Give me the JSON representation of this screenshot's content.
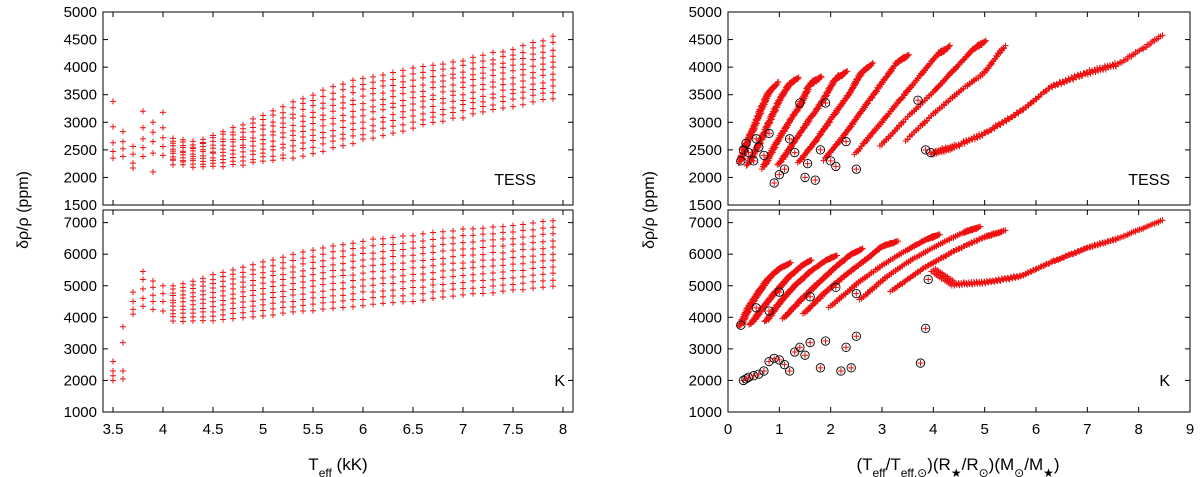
{
  "colors": {
    "marker": "#ee1111",
    "ring": "#000000",
    "axis": "#000000"
  },
  "chart_data": [
    {
      "type": "scatter",
      "panel": "left-top",
      "marker": "plus",
      "ylabel": "δρ/ρ (ppm)",
      "annotation": "TESS",
      "xlim": [
        3.4,
        8.1
      ],
      "ylim": [
        1500,
        5000
      ],
      "xticks": [],
      "yticks": [
        "1500",
        "2000",
        "2500",
        "3000",
        "3500",
        "4000",
        "4500",
        "5000"
      ],
      "series": [
        {
          "points": [
            [
              3.5,
              3380
            ],
            [
              3.5,
              2920
            ],
            [
              3.5,
              2630
            ],
            [
              3.5,
              2470
            ],
            [
              3.5,
              2350
            ],
            [
              3.6,
              2830
            ],
            [
              3.6,
              2650
            ],
            [
              3.6,
              2520
            ],
            [
              3.6,
              2380
            ],
            [
              3.7,
              2560
            ],
            [
              3.7,
              2420
            ],
            [
              3.7,
              2260
            ],
            [
              3.7,
              2170
            ],
            [
              3.8,
              3200
            ],
            [
              3.8,
              2900
            ],
            [
              3.8,
              2700
            ],
            [
              3.8,
              2540
            ],
            [
              3.8,
              2380
            ],
            [
              3.9,
              3000
            ],
            [
              3.9,
              2820
            ],
            [
              3.9,
              2650
            ],
            [
              3.9,
              2440
            ],
            [
              3.9,
              2100
            ],
            [
              4.0,
              3180
            ],
            [
              4.0,
              2900
            ],
            [
              4.0,
              2720
            ],
            [
              4.0,
              2560
            ],
            [
              4.0,
              2400
            ]
          ]
        }
      ],
      "grid": [
        {
          "x": [
            4.1,
            4.3,
            4.5,
            4.8,
            5.2,
            5.6,
            6.0,
            6.5,
            7.0,
            7.5,
            8.0
          ],
          "ymin": [
            2250,
            2200,
            2200,
            2230,
            2330,
            2480,
            2680,
            2900,
            3100,
            3300,
            3480
          ],
          "ymax": [
            2700,
            2640,
            2760,
            2970,
            3280,
            3580,
            3810,
            3970,
            4130,
            4330,
            4600
          ]
        }
      ]
    },
    {
      "type": "scatter",
      "panel": "left-bottom",
      "marker": "plus",
      "xlabel": "Teff (kK)",
      "annotation": "K",
      "xlim": [
        3.4,
        8.1
      ],
      "ylim": [
        1000,
        7400
      ],
      "xticks": [
        "3.5",
        "4",
        "4.5",
        "5",
        "5.5",
        "6",
        "6.5",
        "7",
        "7.5",
        "8"
      ],
      "yticks": [
        "1000",
        "2000",
        "3000",
        "4000",
        "5000",
        "6000",
        "7000"
      ],
      "series": [
        {
          "points": [
            [
              3.5,
              2600
            ],
            [
              3.5,
              2300
            ],
            [
              3.5,
              2150
            ],
            [
              3.5,
              2000
            ],
            [
              3.6,
              3700
            ],
            [
              3.6,
              3200
            ],
            [
              3.6,
              2300
            ],
            [
              3.6,
              2050
            ],
            [
              3.7,
              4800
            ],
            [
              3.7,
              4500
            ],
            [
              3.7,
              4250
            ],
            [
              3.7,
              4100
            ],
            [
              3.8,
              5450
            ],
            [
              3.8,
              5200
            ],
            [
              3.8,
              4900
            ],
            [
              3.8,
              4600
            ],
            [
              3.8,
              4350
            ],
            [
              3.9,
              5150
            ],
            [
              3.9,
              4950
            ],
            [
              3.9,
              4700
            ],
            [
              3.9,
              4500
            ],
            [
              3.9,
              4250
            ],
            [
              4.0,
              5000
            ],
            [
              4.0,
              4750
            ],
            [
              4.0,
              4500
            ],
            [
              4.0,
              4200
            ]
          ]
        }
      ],
      "grid": [
        {
          "x": [
            4.1,
            4.3,
            4.5,
            4.8,
            5.2,
            5.6,
            6.0,
            6.5,
            7.0,
            7.5,
            8.0
          ],
          "ymin": [
            3900,
            3870,
            3900,
            4000,
            4120,
            4250,
            4380,
            4520,
            4700,
            4850,
            5000
          ],
          "ymax": [
            5000,
            5150,
            5350,
            5600,
            5900,
            6200,
            6420,
            6600,
            6780,
            6920,
            7100
          ]
        }
      ]
    },
    {
      "type": "scatter",
      "panel": "right-top",
      "marker": "plus",
      "annotation": "TESS",
      "xlim": [
        0,
        9
      ],
      "ylim": [
        1500,
        5000
      ],
      "xticks": [],
      "yticks": [
        "1500",
        "2000",
        "2500",
        "3000",
        "3500",
        "4000",
        "4500",
        "5000"
      ],
      "tracks": [
        [
          [
            0.25,
            2300
          ],
          [
            0.35,
            2600
          ],
          [
            0.5,
            2900
          ],
          [
            0.65,
            3250
          ],
          [
            0.8,
            3550
          ],
          [
            0.95,
            3700
          ]
        ],
        [
          [
            0.4,
            2250
          ],
          [
            0.6,
            2600
          ],
          [
            0.8,
            3000
          ],
          [
            1.0,
            3400
          ],
          [
            1.2,
            3700
          ],
          [
            1.35,
            3780
          ]
        ],
        [
          [
            0.7,
            2200
          ],
          [
            0.9,
            2550
          ],
          [
            1.15,
            2950
          ],
          [
            1.4,
            3300
          ],
          [
            1.6,
            3700
          ],
          [
            1.8,
            3800
          ]
        ],
        [
          [
            1.0,
            2250
          ],
          [
            1.25,
            2600
          ],
          [
            1.55,
            3000
          ],
          [
            1.85,
            3400
          ],
          [
            2.1,
            3800
          ],
          [
            2.3,
            3900
          ]
        ],
        [
          [
            1.4,
            2300
          ],
          [
            1.7,
            2650
          ],
          [
            2.0,
            3050
          ],
          [
            2.35,
            3500
          ],
          [
            2.6,
            3900
          ],
          [
            2.8,
            4050
          ]
        ],
        [
          [
            1.9,
            2350
          ],
          [
            2.25,
            2750
          ],
          [
            2.6,
            3200
          ],
          [
            2.95,
            3650
          ],
          [
            3.3,
            4100
          ],
          [
            3.5,
            4200
          ]
        ],
        [
          [
            2.5,
            2450
          ],
          [
            2.9,
            2900
          ],
          [
            3.3,
            3350
          ],
          [
            3.7,
            3800
          ],
          [
            4.1,
            4250
          ],
          [
            4.3,
            4350
          ]
        ],
        [
          [
            3.0,
            2600
          ],
          [
            3.5,
            3100
          ],
          [
            4.0,
            3550
          ],
          [
            4.4,
            3950
          ],
          [
            4.8,
            4350
          ],
          [
            5.0,
            4450
          ]
        ],
        [
          [
            3.5,
            2700
          ],
          [
            4.0,
            3150
          ],
          [
            4.5,
            3550
          ],
          [
            5.0,
            3900
          ],
          [
            5.4,
            4400
          ]
        ],
        [
          [
            4.0,
            2450
          ],
          [
            4.4,
            2550
          ],
          [
            5.0,
            2800
          ],
          [
            5.7,
            3200
          ],
          [
            6.3,
            3650
          ],
          [
            7.0,
            3900
          ],
          [
            7.6,
            4050
          ],
          [
            8.5,
            4600
          ]
        ]
      ],
      "circled": [
        [
          0.25,
          2300
        ],
        [
          0.3,
          2500
        ],
        [
          0.35,
          2620
        ],
        [
          0.4,
          2450
        ],
        [
          0.5,
          2300
        ],
        [
          0.55,
          2700
        ],
        [
          0.6,
          2550
        ],
        [
          0.7,
          2400
        ],
        [
          0.8,
          2800
        ],
        [
          0.9,
          1900
        ],
        [
          1.0,
          2050
        ],
        [
          1.1,
          2150
        ],
        [
          1.2,
          2700
        ],
        [
          1.3,
          2450
        ],
        [
          1.4,
          3350
        ],
        [
          1.5,
          2000
        ],
        [
          1.55,
          2250
        ],
        [
          1.7,
          1950
        ],
        [
          1.8,
          2500
        ],
        [
          2.0,
          2300
        ],
        [
          2.1,
          2200
        ],
        [
          2.3,
          2650
        ],
        [
          2.5,
          2150
        ],
        [
          1.9,
          3350
        ],
        [
          3.7,
          3400
        ],
        [
          3.85,
          2500
        ],
        [
          3.95,
          2450
        ]
      ]
    },
    {
      "type": "scatter",
      "panel": "right-bottom",
      "marker": "plus",
      "xlabel": "(Teff/Teff,⊙)(R★/R⊙)(M⊙/M★)",
      "annotation": "K",
      "xlim": [
        0,
        9
      ],
      "ylim": [
        1000,
        7400
      ],
      "xticks": [
        "0",
        "1",
        "2",
        "3",
        "4",
        "5",
        "6",
        "7",
        "8",
        "9"
      ],
      "yticks": [
        "1000",
        "2000",
        "3000",
        "4000",
        "5000",
        "6000",
        "7000"
      ],
      "tracks": [
        [
          [
            0.25,
            3750
          ],
          [
            0.4,
            4300
          ],
          [
            0.6,
            4800
          ],
          [
            0.8,
            5250
          ],
          [
            1.0,
            5550
          ],
          [
            1.2,
            5700
          ]
        ],
        [
          [
            0.45,
            3800
          ],
          [
            0.7,
            4350
          ],
          [
            0.95,
            4850
          ],
          [
            1.2,
            5300
          ],
          [
            1.45,
            5650
          ],
          [
            1.6,
            5800
          ]
        ],
        [
          [
            0.75,
            3900
          ],
          [
            1.0,
            4450
          ],
          [
            1.3,
            5000
          ],
          [
            1.6,
            5450
          ],
          [
            1.9,
            5800
          ],
          [
            2.1,
            5950
          ]
        ],
        [
          [
            1.1,
            4000
          ],
          [
            1.45,
            4600
          ],
          [
            1.8,
            5150
          ],
          [
            2.1,
            5600
          ],
          [
            2.4,
            6000
          ],
          [
            2.6,
            6150
          ]
        ],
        [
          [
            1.5,
            4150
          ],
          [
            1.9,
            4800
          ],
          [
            2.3,
            5350
          ],
          [
            2.7,
            5850
          ],
          [
            3.0,
            6250
          ],
          [
            3.3,
            6400
          ]
        ],
        [
          [
            2.0,
            4350
          ],
          [
            2.5,
            5050
          ],
          [
            3.0,
            5650
          ],
          [
            3.5,
            6150
          ],
          [
            3.9,
            6500
          ],
          [
            4.1,
            6600
          ]
        ],
        [
          [
            2.6,
            4600
          ],
          [
            3.1,
            5300
          ],
          [
            3.6,
            5850
          ],
          [
            4.1,
            6300
          ],
          [
            4.6,
            6700
          ],
          [
            4.9,
            6850
          ]
        ],
        [
          [
            3.2,
            4850
          ],
          [
            3.8,
            5550
          ],
          [
            4.4,
            6100
          ],
          [
            5.0,
            6550
          ],
          [
            5.4,
            6750
          ]
        ],
        [
          [
            4.0,
            5500
          ],
          [
            4.4,
            5050
          ],
          [
            5.0,
            5100
          ],
          [
            5.7,
            5300
          ],
          [
            6.3,
            5750
          ],
          [
            7.0,
            6200
          ],
          [
            7.6,
            6500
          ],
          [
            8.5,
            7100
          ]
        ]
      ],
      "circled": [
        [
          0.25,
          3750
        ],
        [
          0.3,
          2000
        ],
        [
          0.35,
          2050
        ],
        [
          0.4,
          2100
        ],
        [
          0.5,
          2150
        ],
        [
          0.55,
          4300
        ],
        [
          0.6,
          2200
        ],
        [
          0.7,
          2300
        ],
        [
          0.8,
          2600
        ],
        [
          0.9,
          2700
        ],
        [
          1.0,
          2650
        ],
        [
          1.1,
          2500
        ],
        [
          1.2,
          2300
        ],
        [
          1.3,
          2900
        ],
        [
          1.4,
          3050
        ],
        [
          1.5,
          2800
        ],
        [
          1.6,
          3200
        ],
        [
          1.8,
          2400
        ],
        [
          1.9,
          3250
        ],
        [
          2.2,
          2300
        ],
        [
          2.3,
          3050
        ],
        [
          2.4,
          2400
        ],
        [
          2.5,
          3400
        ],
        [
          2.5,
          4750
        ],
        [
          3.75,
          2550
        ],
        [
          3.85,
          3650
        ],
        [
          3.9,
          5200
        ],
        [
          0.8,
          4200
        ],
        [
          1.0,
          4800
        ],
        [
          1.6,
          4650
        ],
        [
          2.1,
          4950
        ]
      ]
    }
  ]
}
